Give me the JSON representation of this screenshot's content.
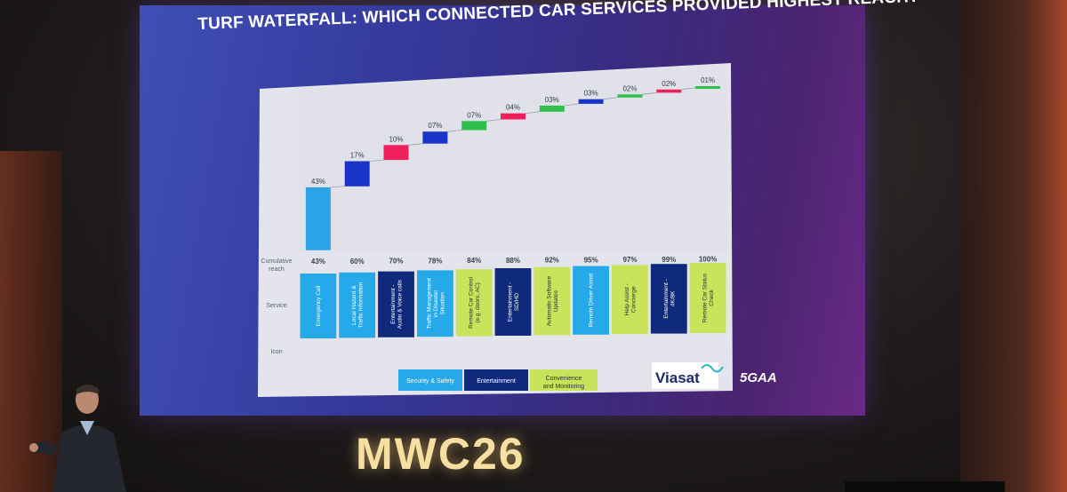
{
  "slide": {
    "title": "TURF WATERFALL: WHICH CONNECTED CAR SERVICES PROVIDED HIGHEST REACH?"
  },
  "event": {
    "brand": "MWC26"
  },
  "logos": [
    "Viasat",
    "5GAA"
  ],
  "chart_data": {
    "type": "bar",
    "subtype": "waterfall",
    "title": "TURF WATERFALL: WHICH CONNECTED CAR SERVICES PROVIDED HIGHEST REACH?",
    "categories": [
      "Emergency Call",
      "Local Hazard & Traffic Information",
      "Entertainment - Audio & Voice calls",
      "Traffic Management in Disaster Situation",
      "Remote Car Control (e.g. doors, AC)",
      "Entertainment - SD/HD",
      "Automatic Software Updates",
      "Remote Driver Assist",
      "Help Assist - Concierge",
      "Entertainment - 4K/8K",
      "Remote Car Status Check"
    ],
    "increment_labels": [
      "43%",
      "17%",
      "10%",
      "07%",
      "07%",
      "04%",
      "03%",
      "03%",
      "02%",
      "02%",
      "01%"
    ],
    "increments": [
      43,
      17,
      10,
      7,
      7,
      4,
      3,
      3,
      2,
      2,
      1
    ],
    "cumulative_labels": [
      "43%",
      "60%",
      "70%",
      "78%",
      "84%",
      "88%",
      "92%",
      "95%",
      "97%",
      "99%",
      "100%"
    ],
    "cumulative_reach": [
      43,
      60,
      70,
      78,
      84,
      88,
      92,
      95,
      97,
      99,
      100
    ],
    "service_group": [
      "security",
      "security",
      "entertainment",
      "security",
      "convenience",
      "entertainment",
      "convenience",
      "security",
      "convenience",
      "entertainment",
      "convenience"
    ],
    "bar_colors": [
      "#2ba3e6",
      "#1a34c8",
      "#ee1f5a",
      "#1a34c8",
      "#2fbf4a",
      "#ee1f5a",
      "#2fbf4a",
      "#1a34c8",
      "#2fbf4a",
      "#ee1f5a",
      "#2fbf4a"
    ],
    "row_labels": [
      "Cumulative reach",
      "Service",
      "Icon"
    ],
    "legend": [
      {
        "name": "Security & Safety",
        "color": "#26a9e8"
      },
      {
        "name": "Entertainment",
        "color": "#0f2a7a"
      },
      {
        "name": "Convenience and Monitoring",
        "color": "#c9e35a"
      }
    ],
    "ylim": [
      0,
      100
    ],
    "legend_position": "bottom"
  }
}
